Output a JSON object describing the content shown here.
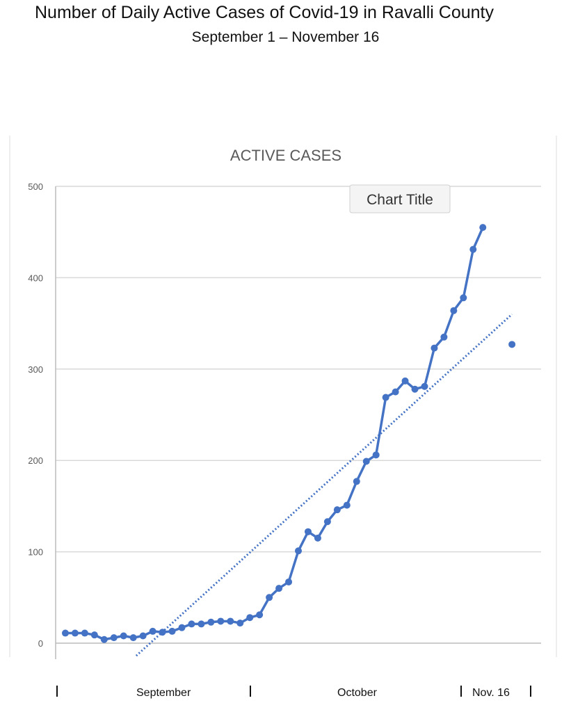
{
  "page": {
    "title": "Number of Daily Active Cases of Covid-19 in Ravalli County",
    "subtitle": "September 1 – November 16",
    "bottom_labels": [
      "September",
      "October",
      "Nov. 16"
    ]
  },
  "tooltip": "Chart Title",
  "chart_data": {
    "type": "line",
    "title": "ACTIVE CASES",
    "xlabel": "",
    "ylabel": "",
    "xlim": [
      0,
      50
    ],
    "ylim": [
      0,
      500
    ],
    "yticks": [
      0,
      100,
      200,
      300,
      400,
      500
    ],
    "xticks": [
      10,
      20,
      30,
      40,
      50
    ],
    "grid": true,
    "color": "#4472c4",
    "series": [
      {
        "name": "Active cases",
        "x": [
          1,
          2,
          3,
          4,
          5,
          6,
          7,
          8,
          9,
          10,
          11,
          12,
          13,
          14,
          15,
          16,
          17,
          18,
          19,
          20,
          21,
          22,
          23,
          24,
          25,
          26,
          27,
          28,
          29,
          30,
          31,
          32,
          33,
          34,
          35,
          36,
          37,
          38,
          39,
          40,
          41,
          42,
          43,
          44
        ],
        "values": [
          11,
          11,
          11,
          9,
          4,
          6,
          8,
          6,
          8,
          13,
          12,
          13,
          17,
          21,
          21,
          23,
          24,
          24,
          22,
          28,
          31,
          50,
          60,
          67,
          101,
          122,
          115,
          133,
          146,
          151,
          177,
          199,
          206,
          269,
          275,
          287,
          278,
          281,
          323,
          335,
          364,
          378,
          431,
          455
        ]
      },
      {
        "name": "Isolated point",
        "x": [
          47
        ],
        "values": [
          327
        ]
      }
    ],
    "trendline": {
      "type": "linear",
      "slope": 9.66,
      "intercept": -94,
      "x_range": [
        8.3,
        47
      ]
    }
  }
}
